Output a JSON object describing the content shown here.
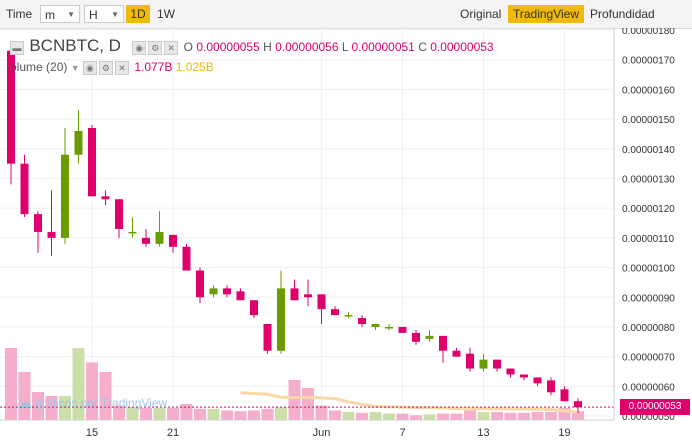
{
  "toolbar": {
    "time_label": "Time",
    "minute_label": "m",
    "hour_label": "H",
    "day_label": "1D",
    "week_label": "1W",
    "original_label": "Original",
    "tradingview_label": "TradingView",
    "depth_label": "Profundidad"
  },
  "legend": {
    "symbol": "BCNBTC, D",
    "o_label": "O",
    "o_value": "0.00000055",
    "h_label": "H",
    "h_value": "0.00000056",
    "l_label": "L",
    "l_value": "0.00000051",
    "c_label": "C",
    "c_value": "0.00000053",
    "volume_label": "olume (20)",
    "volume_value": "1.077B",
    "volume_ma": "1.025B"
  },
  "price_label": "0.00000053",
  "watermark": "gráficos por TradingView",
  "colors": {
    "up": "#6a9b00",
    "down": "#e0006b",
    "vol_up": "#c8dca0",
    "vol_down": "#f4a6c8",
    "ma": "#f7d9a8",
    "accent": "#f0b90b"
  },
  "chart_data": {
    "type": "candlestick",
    "y_ticks": [
      "0.00000180",
      "0.00000170",
      "0.00000160",
      "0.00000150",
      "0.00000140",
      "0.00000130",
      "0.00000120",
      "0.00000110",
      "0.00000100",
      "0.00000090",
      "0.00000080",
      "0.00000070",
      "0.00000060",
      "0.00000050"
    ],
    "x_ticks": [
      {
        "label": "15",
        "index": 6
      },
      {
        "label": "21",
        "index": 12
      },
      {
        "label": "Jun",
        "index": 23
      },
      {
        "label": "7",
        "index": 29
      },
      {
        "label": "13",
        "index": 35
      },
      {
        "label": "19",
        "index": 41
      }
    ],
    "candles": [
      {
        "o": 173,
        "h": 176,
        "l": 128,
        "c": 135
      },
      {
        "o": 135,
        "h": 138,
        "l": 117,
        "c": 118
      },
      {
        "o": 118,
        "h": 119,
        "l": 105,
        "c": 112
      },
      {
        "o": 112,
        "h": 126,
        "l": 104,
        "c": 110
      },
      {
        "o": 110,
        "h": 147,
        "l": 108,
        "c": 138
      },
      {
        "o": 138,
        "h": 153,
        "l": 135,
        "c": 146
      },
      {
        "o": 147,
        "h": 148,
        "l": 124,
        "c": 124
      },
      {
        "o": 124,
        "h": 126,
        "l": 121,
        "c": 123
      },
      {
        "o": 123,
        "h": 123,
        "l": 110,
        "c": 113
      },
      {
        "o": 112,
        "h": 117,
        "l": 110,
        "c": 112
      },
      {
        "o": 110,
        "h": 113,
        "l": 107,
        "c": 108
      },
      {
        "o": 108,
        "h": 119,
        "l": 107,
        "c": 112
      },
      {
        "o": 111,
        "h": 111,
        "l": 105,
        "c": 107
      },
      {
        "o": 107,
        "h": 108,
        "l": 99,
        "c": 99
      },
      {
        "o": 99,
        "h": 100,
        "l": 88,
        "c": 90
      },
      {
        "o": 91,
        "h": 94,
        "l": 90,
        "c": 93
      },
      {
        "o": 93,
        "h": 94,
        "l": 90,
        "c": 91
      },
      {
        "o": 92,
        "h": 93,
        "l": 89,
        "c": 89
      },
      {
        "o": 89,
        "h": 89,
        "l": 83,
        "c": 84
      },
      {
        "o": 81,
        "h": 81,
        "l": 71,
        "c": 72
      },
      {
        "o": 72,
        "h": 99,
        "l": 71,
        "c": 93
      },
      {
        "o": 93,
        "h": 96,
        "l": 89,
        "c": 89
      },
      {
        "o": 91,
        "h": 96,
        "l": 87,
        "c": 90
      },
      {
        "o": 91,
        "h": 91,
        "l": 81,
        "c": 86
      },
      {
        "o": 86,
        "h": 87,
        "l": 84,
        "c": 84
      },
      {
        "o": 84,
        "h": 85,
        "l": 83,
        "c": 84
      },
      {
        "o": 83,
        "h": 84,
        "l": 80,
        "c": 81
      },
      {
        "o": 80,
        "h": 81,
        "l": 79,
        "c": 81
      },
      {
        "o": 80,
        "h": 81,
        "l": 79,
        "c": 80
      },
      {
        "o": 80,
        "h": 80,
        "l": 78,
        "c": 78
      },
      {
        "o": 78,
        "h": 79,
        "l": 74,
        "c": 75
      },
      {
        "o": 76,
        "h": 79,
        "l": 75,
        "c": 77
      },
      {
        "o": 77,
        "h": 77,
        "l": 68,
        "c": 72
      },
      {
        "o": 72,
        "h": 73,
        "l": 70,
        "c": 70
      },
      {
        "o": 71,
        "h": 73,
        "l": 65,
        "c": 66
      },
      {
        "o": 66,
        "h": 71,
        "l": 65,
        "c": 69
      },
      {
        "o": 69,
        "h": 69,
        "l": 65,
        "c": 66
      },
      {
        "o": 66,
        "h": 66,
        "l": 63,
        "c": 64
      },
      {
        "o": 64,
        "h": 64,
        "l": 62,
        "c": 63
      },
      {
        "o": 63,
        "h": 63,
        "l": 60,
        "c": 61
      },
      {
        "o": 62,
        "h": 63,
        "l": 57,
        "c": 58
      },
      {
        "o": 59,
        "h": 60,
        "l": 55,
        "c": 55
      },
      {
        "o": 55,
        "h": 56,
        "l": 51,
        "c": 53
      }
    ],
    "volumes": [
      90,
      60,
      35,
      30,
      30,
      90,
      72,
      60,
      18,
      16,
      15,
      15,
      15,
      20,
      14,
      14,
      12,
      11,
      12,
      14,
      16,
      50,
      40,
      18,
      12,
      10,
      9,
      10,
      8,
      8,
      6,
      7,
      8,
      8,
      12,
      10,
      10,
      9,
      9,
      10,
      10,
      15,
      11
    ]
  }
}
